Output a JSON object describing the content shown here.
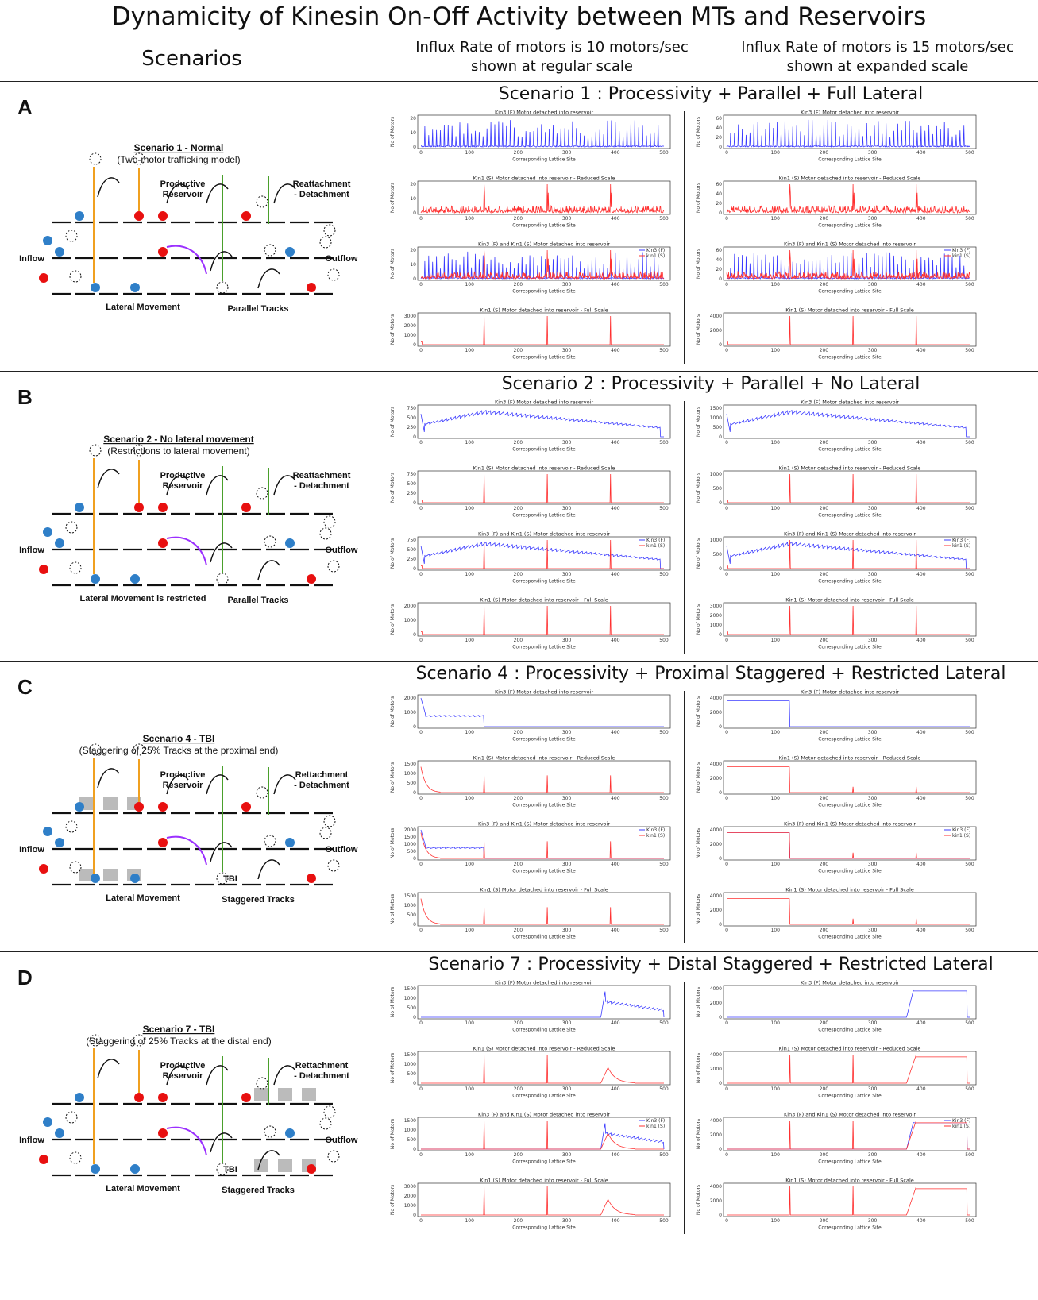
{
  "title": "Dynamicity of Kinesin On-Off Activity between MTs and Reservoirs",
  "headers": {
    "scenarios": "Scenarios",
    "col1_line1": "Influx Rate of motors is 10 motors/sec",
    "col1_line2": "shown at regular scale",
    "col2_line1": "Influx Rate of motors is 15 motors/sec",
    "col2_line2": "shown at expanded scale"
  },
  "colors": {
    "kin3": "#3b3bff",
    "kin1": "#ff3030",
    "blue_motor": "#2f7fc8",
    "red_motor": "#e81010",
    "orange": "#f0a020",
    "green": "#4aa02c",
    "purple": "#9b30ff"
  },
  "panels": [
    {
      "letter": "A",
      "row_title": "Scenario 1 : Processivity + Parallel +  Full Lateral",
      "diagram": {
        "heading": "Scenario 1 - Normal",
        "subheading": "(Two-motor trafficking model)",
        "labels": {
          "productive": "Productive",
          "reservoir": "Reservoir",
          "reatt1": "Reattachment",
          "reatt2": "- Detachment",
          "inflow": "Inflow",
          "outflow": "Outflow",
          "lateral": "Lateral Movement",
          "parallel": "Parallel Tracks"
        }
      },
      "plots_left": [
        {
          "title": "Kin3 (F) Motor detached into reservoir",
          "yticks": [
            "0",
            "10",
            "20"
          ],
          "kind": "spikes_blue"
        },
        {
          "title": "Kin1 (S) Motor detached into reservoir - Reduced Scale",
          "yticks": [
            "0",
            "10",
            "20"
          ],
          "kind": "noise_red"
        },
        {
          "title": "Kin3 (F) and Kin1 (S) Motor detached into reservoir",
          "yticks": [
            "0",
            "10",
            "20"
          ],
          "kind": "both"
        },
        {
          "title": "Kin1 (S) Motor detached into reservoir - Full Scale",
          "yticks": [
            "0",
            "1000",
            "2000",
            "3000"
          ],
          "kind": "peaks_red"
        }
      ],
      "plots_right": [
        {
          "title": "Kin3 (F) Motor detached into reservoir",
          "yticks": [
            "0",
            "20",
            "40",
            "60"
          ],
          "kind": "spikes_blue"
        },
        {
          "title": "Kin1 (S) Motor detached into reservoir - Reduced Scale",
          "yticks": [
            "0",
            "20",
            "40",
            "60"
          ],
          "kind": "noise_red"
        },
        {
          "title": "Kin3 (F) and Kin1 (S) Motor detached into reservoir",
          "yticks": [
            "0",
            "20",
            "40",
            "60"
          ],
          "kind": "both"
        },
        {
          "title": "Kin1 (S) Motor detached into reservoir - Full Scale",
          "yticks": [
            "0",
            "2000",
            "4000"
          ],
          "kind": "peaks_red"
        }
      ]
    },
    {
      "letter": "B",
      "row_title": "Scenario 2 : Processivity + Parallel + No Lateral",
      "diagram": {
        "heading": "Scenario 2 - No lateral movement",
        "subheading": "(Restrictions to lateral movement)",
        "labels": {
          "productive": "Productive",
          "reservoir": "Reservoir",
          "reatt1": "Reattachment",
          "reatt2": "- Detachment",
          "inflow": "Inflow",
          "outflow": "Outflow",
          "lateral": "Lateral Movement is restricted",
          "parallel": "Parallel Tracks"
        }
      },
      "plots_left": [
        {
          "title": "Kin3 (F) Motor detached into reservoir",
          "yticks": [
            "0",
            "250",
            "500",
            "750"
          ],
          "kind": "saw_blue"
        },
        {
          "title": "Kin1 (S) Motor detached into reservoir - Reduced Scale",
          "yticks": [
            "0",
            "250",
            "500",
            "750"
          ],
          "kind": "peaks_red"
        },
        {
          "title": "Kin3 (F) and Kin1 (S) Motor detached into reservoir",
          "yticks": [
            "0",
            "250",
            "500",
            "750"
          ],
          "kind": "saw_both"
        },
        {
          "title": "Kin1 (S) Motor detached into reservoir - Full Scale",
          "yticks": [
            "0",
            "1000",
            "2000"
          ],
          "kind": "peaks_red"
        }
      ],
      "plots_right": [
        {
          "title": "Kin3 (F) Motor detached into reservoir",
          "yticks": [
            "0",
            "500",
            "1000",
            "1500"
          ],
          "kind": "saw_blue"
        },
        {
          "title": "Kin1 (S) Motor detached into reservoir - Reduced Scale",
          "yticks": [
            "0",
            "500",
            "1000"
          ],
          "kind": "peaks_red"
        },
        {
          "title": "Kin3 (F) and Kin1 (S) Motor detached into reservoir",
          "yticks": [
            "0",
            "500",
            "1000"
          ],
          "kind": "saw_both"
        },
        {
          "title": "Kin1 (S) Motor detached into reservoir - Full Scale",
          "yticks": [
            "0",
            "1000",
            "2000",
            "3000"
          ],
          "kind": "peaks_red"
        }
      ]
    },
    {
      "letter": "C",
      "row_title": "Scenario 4 : Processivity + Proximal Staggered + Restricted Lateral",
      "diagram": {
        "heading": "Scenario 4 - TBI",
        "subheading": "(Staggering of 25% Tracks at the proximal end)",
        "labels": {
          "productive": "Productive",
          "reservoir": "Reservoir",
          "reatt1": "Rettachment",
          "reatt2": "- Detachment",
          "inflow": "Inflow",
          "outflow": "Outflow",
          "lateral": "Lateral Movement",
          "parallel": "Staggered Tracks",
          "tbi": "TBI"
        }
      },
      "plots_left": [
        {
          "title": "Kin3 (F) Motor detached into reservoir",
          "yticks": [
            "0",
            "1000",
            "2000"
          ],
          "kind": "prox_blue"
        },
        {
          "title": "Kin1 (S) Motor detached into reservoir - Reduced Scale",
          "yticks": [
            "0",
            "500",
            "1000",
            "1500"
          ],
          "kind": "prox_red"
        },
        {
          "title": "Kin3 (F) and Kin1 (S) Motor detached into reservoir",
          "yticks": [
            "0",
            "500",
            "1000",
            "1500",
            "2000"
          ],
          "kind": "prox_both"
        },
        {
          "title": "Kin1 (S) Motor detached into reservoir - Full Scale",
          "yticks": [
            "0",
            "500",
            "1000",
            "1500"
          ],
          "kind": "prox_red"
        }
      ],
      "plots_right": [
        {
          "title": "Kin3 (F) Motor detached into reservoir",
          "yticks": [
            "0",
            "2000",
            "4000"
          ],
          "kind": "plat_blue"
        },
        {
          "title": "Kin1 (S) Motor detached into reservoir - Reduced Scale",
          "yticks": [
            "0",
            "2000",
            "4000"
          ],
          "kind": "plat_red"
        },
        {
          "title": "Kin3 (F) and Kin1 (S) Motor detached into reservoir",
          "yticks": [
            "0",
            "2000",
            "4000"
          ],
          "kind": "plat_both"
        },
        {
          "title": "Kin1 (S) Motor detached into reservoir - Full Scale",
          "yticks": [
            "0",
            "2000",
            "4000"
          ],
          "kind": "plat_red"
        }
      ]
    },
    {
      "letter": "D",
      "row_title": "Scenario 7 : Processivity + Distal Staggered + Restricted Lateral",
      "diagram": {
        "heading": "Scenario 7 - TBI",
        "subheading": "(Staggering of 25% Tracks at the distal end)",
        "labels": {
          "productive": "Productive",
          "reservoir": "Reservoir",
          "reatt1": "Rettachment",
          "reatt2": "- Detachment",
          "inflow": "Inflow",
          "outflow": "Outflow",
          "lateral": "Lateral Movement",
          "parallel": "Staggered Tracks",
          "tbi": "TBI"
        }
      },
      "plots_left": [
        {
          "title": "Kin3 (F) Motor detached into reservoir",
          "yticks": [
            "0",
            "500",
            "1000",
            "1500"
          ],
          "kind": "dist_blue"
        },
        {
          "title": "Kin1 (S) Motor detached into reservoir - Reduced Scale",
          "yticks": [
            "0",
            "500",
            "1000",
            "1500"
          ],
          "kind": "dist_red"
        },
        {
          "title": "Kin3 (F) and Kin1 (S) Motor detached into reservoir",
          "yticks": [
            "0",
            "500",
            "1000",
            "1500"
          ],
          "kind": "dist_both"
        },
        {
          "title": "Kin1 (S) Motor detached into reservoir - Full Scale",
          "yticks": [
            "0",
            "1000",
            "2000",
            "3000"
          ],
          "kind": "dist_red"
        }
      ],
      "plots_right": [
        {
          "title": "Kin3 (F) Motor detached into reservoir",
          "yticks": [
            "0",
            "2000",
            "4000"
          ],
          "kind": "dplat_blue"
        },
        {
          "title": "Kin1 (S) Motor detached into reservoir - Reduced Scale",
          "yticks": [
            "0",
            "2000",
            "4000"
          ],
          "kind": "dplat_red"
        },
        {
          "title": "Kin3 (F) and Kin1 (S) Motor detached into reservoir",
          "yticks": [
            "0",
            "2000",
            "4000"
          ],
          "kind": "dplat_both"
        },
        {
          "title": "Kin1 (S) Motor detached into reservoir - Full Scale",
          "yticks": [
            "0",
            "2000",
            "4000"
          ],
          "kind": "dplat_red"
        }
      ]
    }
  ],
  "common": {
    "xlabel": "Corresponding Lattice Site",
    "ylabel": "No of Motors",
    "xticks": [
      "0",
      "100",
      "200",
      "300",
      "400",
      "500"
    ],
    "legend_kin3": "Kin3 (F)",
    "legend_kin1": "kin1 (S)"
  },
  "chart_data": {
    "type": "line",
    "xlabel": "Corresponding Lattice Site",
    "ylabel": "No of Motors",
    "xlim": [
      0,
      500
    ],
    "series": [
      {
        "name": "Kin3 (F)",
        "values": "motors detached into reservoir per lattice site"
      },
      {
        "name": "kin1 (S)",
        "values": "motors detached into reservoir per lattice site"
      }
    ],
    "peak_sites": [
      130,
      260,
      390
    ]
  }
}
